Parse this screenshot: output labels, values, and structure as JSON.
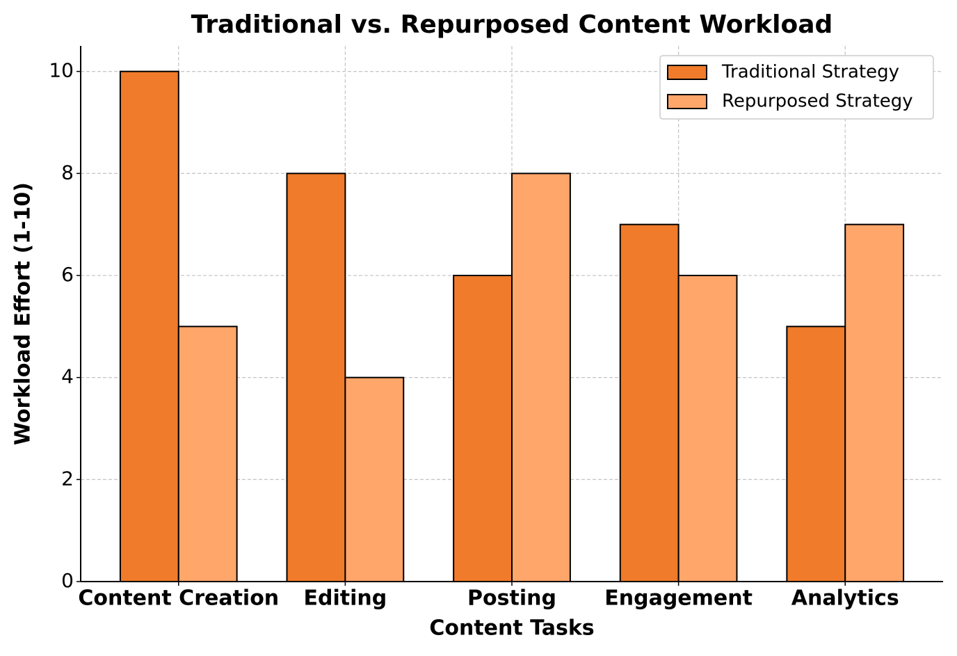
{
  "chart_data": {
    "type": "bar",
    "title": "Traditional vs. Repurposed Content Workload",
    "x_label": "Content Tasks",
    "y_label": "Workload Effort (1-10)",
    "categories": [
      "Content Creation",
      "Editing",
      "Posting",
      "Engagement",
      "Analytics"
    ],
    "series": [
      {
        "name": "Traditional Strategy",
        "color": "#f07b2a",
        "values": [
          10,
          8,
          6,
          7,
          5
        ]
      },
      {
        "name": "Repurposed Strategy",
        "color": "#ffa66b",
        "values": [
          5,
          4,
          8,
          6,
          7
        ]
      }
    ],
    "ylim": [
      0,
      10.5
    ],
    "yticks": [
      0,
      2,
      4,
      6,
      8,
      10
    ],
    "grid": true,
    "legend": "upper right"
  }
}
